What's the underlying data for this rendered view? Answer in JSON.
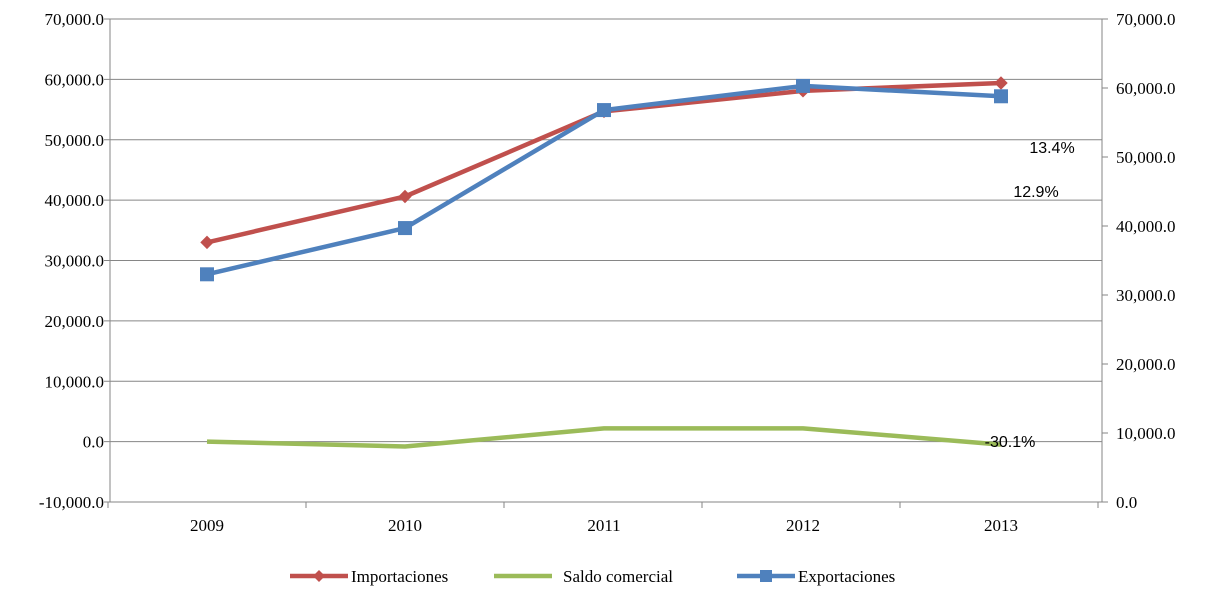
{
  "chart_data": {
    "type": "line",
    "categories": [
      "2009",
      "2010",
      "2011",
      "2012",
      "2013"
    ],
    "y_left": {
      "range": [
        -10000,
        70000
      ],
      "ticks": [
        -10000,
        0,
        10000,
        20000,
        30000,
        40000,
        50000,
        60000,
        70000
      ],
      "tick_labels": [
        "-10,000.0",
        "0.0",
        "10,000.0",
        "20,000.0",
        "30,000.0",
        "40,000.0",
        "50,000.0",
        "60,000.0",
        "70,000.0"
      ]
    },
    "y_right": {
      "range": [
        0,
        70000
      ],
      "ticks": [
        0,
        10000,
        20000,
        30000,
        40000,
        50000,
        60000,
        70000
      ],
      "tick_labels": [
        "0.0",
        "10,000.0",
        "20,000.0",
        "30,000.0",
        "40,000.0",
        "50,000.0",
        "60,000.0",
        "70,000.0"
      ]
    },
    "grid": true,
    "legend_position": "bottom",
    "series": [
      {
        "name": "Importaciones",
        "axis": "left",
        "color": "#C0504D",
        "marker": "diamond",
        "values": [
          33000,
          40600,
          54700,
          58100,
          59400
        ]
      },
      {
        "name": "Saldo comercial",
        "axis": "left",
        "color": "#9BBB59",
        "marker": "none",
        "values": [
          0,
          -800,
          2200,
          2200,
          -500
        ]
      },
      {
        "name": "Exportaciones",
        "axis": "right",
        "color": "#4F81BD",
        "marker": "square",
        "values": [
          33000,
          39700,
          56800,
          60300,
          58800
        ]
      }
    ],
    "annotations": [
      {
        "text": "13.4%",
        "x_between": [
          "2013",
          "right-axis"
        ],
        "y": 53000
      },
      {
        "text": "12.9%",
        "x_between": [
          "2013",
          "right-axis"
        ],
        "y": 41800
      },
      {
        "text": "-30.1%",
        "x": "2013",
        "y": 500
      }
    ]
  }
}
